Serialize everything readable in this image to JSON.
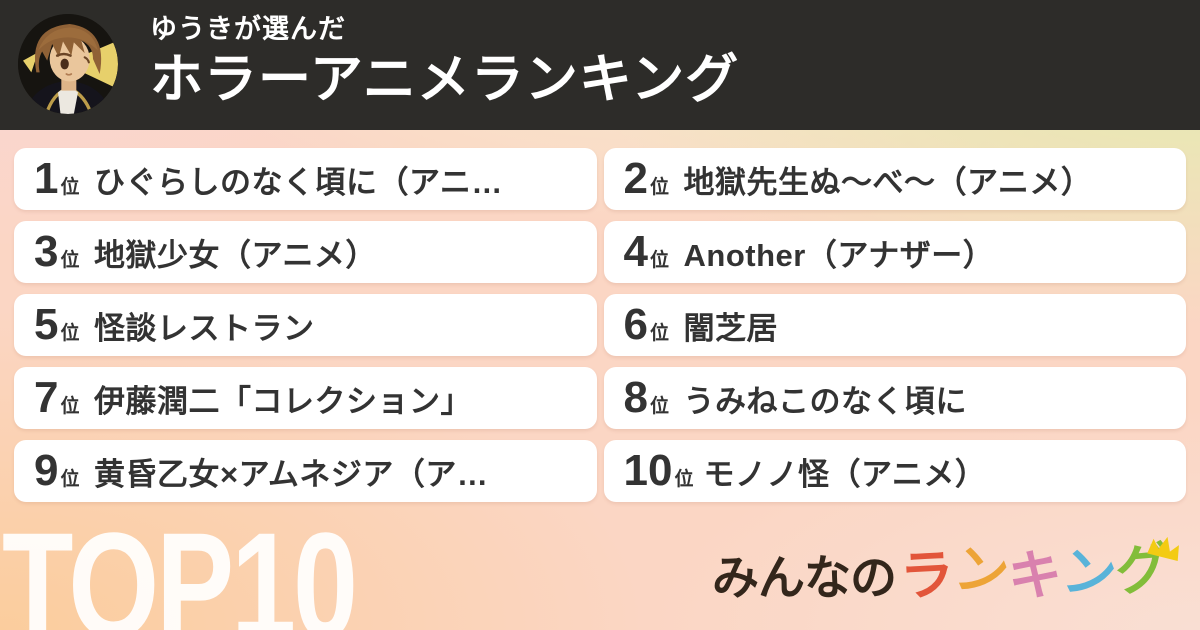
{
  "header": {
    "subtitle": "ゆうきが選んだ",
    "title": "ホラーアニメランキング"
  },
  "ranking": {
    "rank_suffix": "位",
    "items": [
      {
        "rank": "1",
        "title": "ひぐらしのなく頃に（アニ…"
      },
      {
        "rank": "2",
        "title": "地獄先生ぬ～べ～（アニメ）"
      },
      {
        "rank": "3",
        "title": "地獄少女（アニメ）"
      },
      {
        "rank": "4",
        "title": "Another（アナザー）"
      },
      {
        "rank": "5",
        "title": "怪談レストラン"
      },
      {
        "rank": "6",
        "title": "闇芝居"
      },
      {
        "rank": "7",
        "title": "伊藤潤二「コレクション」"
      },
      {
        "rank": "8",
        "title": "うみねこのなく頃に"
      },
      {
        "rank": "9",
        "title": "黄昏乙女×アムネジア（ア…"
      },
      {
        "rank": "10",
        "title": "モノノ怪（アニメ）"
      }
    ]
  },
  "footer": {
    "top_label": "TOP10",
    "logo": {
      "prefix": "みんなの",
      "prefix_color": "#33261b",
      "colored_letters": [
        {
          "char": "ラ",
          "color": "#e2553a"
        },
        {
          "char": "ン",
          "color": "#eda437"
        },
        {
          "char": "キ",
          "color": "#d981ae"
        },
        {
          "char": "ン",
          "color": "#58b3d9"
        },
        {
          "char": "グ",
          "color": "#82bd3a"
        }
      ],
      "crown_color": "#f3cb13"
    }
  },
  "colors": {
    "header_bg": "#2d2c29",
    "card_bg": "#ffffff",
    "text_dark": "#333333",
    "top10_color": "#ffffff",
    "bg_top_left": "#fad6d5",
    "bg_top_right": "#e2efae",
    "bg_bottom_left": "#fbcd9d",
    "bg_bottom_right": "#f9dfd4"
  }
}
